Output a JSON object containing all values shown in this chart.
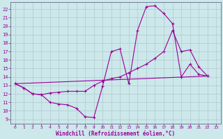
{
  "background_color": "#cce8ea",
  "grid_color": "#b0c8cc",
  "line_color": "#990099",
  "xlabel": "Windchill (Refroidissement éolien,°C)",
  "xlim": [
    -0.5,
    23.5
  ],
  "ylim": [
    8.5,
    22.8
  ],
  "yticks": [
    9,
    10,
    11,
    12,
    13,
    14,
    15,
    16,
    17,
    18,
    19,
    20,
    21,
    22
  ],
  "xticks": [
    0,
    1,
    2,
    3,
    4,
    5,
    6,
    7,
    8,
    9,
    10,
    11,
    12,
    13,
    14,
    15,
    16,
    17,
    18,
    19,
    20,
    21,
    22,
    23
  ],
  "series1_x": [
    0,
    1,
    2,
    3,
    4,
    5,
    6,
    7,
    8,
    9,
    10,
    11,
    12,
    13,
    14,
    15,
    16,
    17,
    18,
    19,
    20,
    21,
    22
  ],
  "series1_y": [
    13.2,
    12.7,
    12.0,
    11.9,
    11.0,
    10.8,
    10.7,
    10.3,
    9.3,
    9.2,
    12.9,
    17.0,
    17.3,
    13.2,
    19.5,
    22.3,
    22.4,
    21.5,
    20.3,
    14.0,
    15.5,
    14.3,
    14.1
  ],
  "series2_x": [
    0,
    1,
    2,
    3,
    4,
    5,
    6,
    7,
    8,
    9,
    10,
    11,
    12,
    13,
    14,
    15,
    16,
    17,
    18,
    19,
    20,
    21,
    22
  ],
  "series2_y": [
    13.2,
    12.7,
    12.0,
    11.9,
    12.1,
    12.2,
    12.3,
    12.3,
    12.3,
    13.0,
    13.5,
    13.8,
    14.0,
    14.5,
    15.0,
    15.5,
    16.2,
    17.0,
    19.5,
    17.0,
    17.2,
    15.2,
    14.1
  ],
  "series3_x": [
    0,
    22
  ],
  "series3_y": [
    13.2,
    14.1
  ]
}
